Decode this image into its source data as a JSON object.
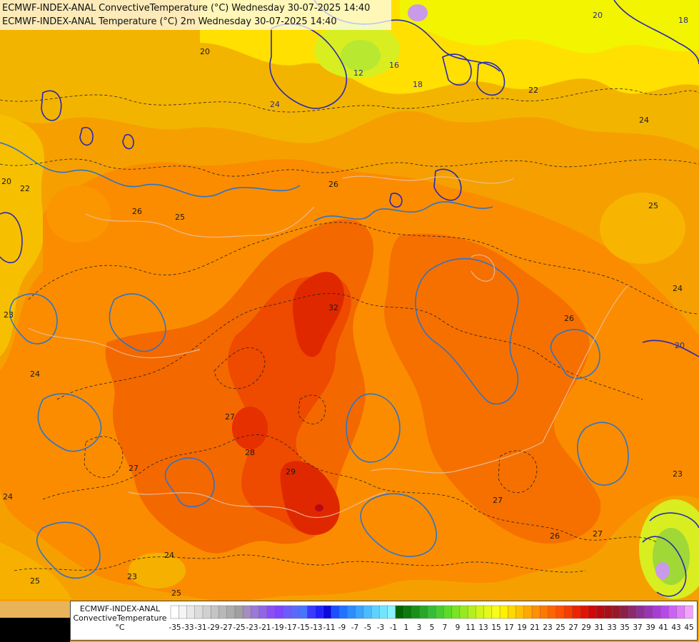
{
  "header": {
    "line1": "ECMWF-INDEX-ANAL ConvectiveTemperature (°C) Wednesday 30-07-2025 14:40",
    "line2": "ECMWF-INDEX-ANAL Temperature (°C) 2m Wednesday 30-07-2025 14:40"
  },
  "legend": {
    "title_line1": "ECMWF-INDEX-ANAL",
    "title_line2": "ConvectiveTemperature",
    "unit": "°C",
    "tick_labels": [
      "-35",
      "-33",
      "-31",
      "-29",
      "-27",
      "-25",
      "-23",
      "-21",
      "-19",
      "-17",
      "-15",
      "-13",
      "-11",
      "-9",
      "-7",
      "-5",
      "-3",
      "-1",
      "1",
      "3",
      "5",
      "7",
      "9",
      "11",
      "13",
      "15",
      "17",
      "19",
      "21",
      "23",
      "25",
      "27",
      "29",
      "31",
      "33",
      "35",
      "37",
      "39",
      "41",
      "43",
      "45"
    ],
    "colors": [
      "#ffffff",
      "#f4f4f4",
      "#e8e8e8",
      "#dcdcdc",
      "#d0d0d0",
      "#c4c4c4",
      "#b8b8b8",
      "#acacac",
      "#a0a0a0",
      "#a58cc2",
      "#9c78d8",
      "#9264ea",
      "#8a50f6",
      "#7e46ff",
      "#6c5cff",
      "#5a6aff",
      "#4676ff",
      "#3a3aff",
      "#2222ff",
      "#0a0ae0",
      "#1c50ff",
      "#1f74ff",
      "#2e8cff",
      "#3aa4ff",
      "#4abcff",
      "#5ed2ff",
      "#72e4ff",
      "#88f2ff",
      "#006400",
      "#0c7a0c",
      "#1a901a",
      "#28a628",
      "#36bc36",
      "#48cc30",
      "#5cdc28",
      "#78e424",
      "#96ea20",
      "#b4f01e",
      "#d2f41c",
      "#e6f81a",
      "#f8fc1a",
      "#fff000",
      "#ffd800",
      "#ffc000",
      "#ffa800",
      "#ff9000",
      "#ff7800",
      "#ff6400",
      "#ff5000",
      "#f83c00",
      "#ee2400",
      "#e01400",
      "#d00808",
      "#bc0810",
      "#a81018",
      "#981828",
      "#8c2048",
      "#8c2870",
      "#902e96",
      "#9a34b6",
      "#a83cd4",
      "#b848ea",
      "#cc60f6",
      "#e07cfa",
      "#f2a4fc"
    ]
  },
  "map_labels": [
    {
      "text": "20"
    },
    {
      "text": "24"
    },
    {
      "text": "22"
    },
    {
      "text": "26"
    },
    {
      "text": "25"
    },
    {
      "text": "27"
    },
    {
      "text": "28"
    },
    {
      "text": "23"
    },
    {
      "text": "18"
    },
    {
      "text": "12"
    },
    {
      "text": "16"
    },
    {
      "text": "29"
    },
    {
      "text": "32"
    }
  ]
}
